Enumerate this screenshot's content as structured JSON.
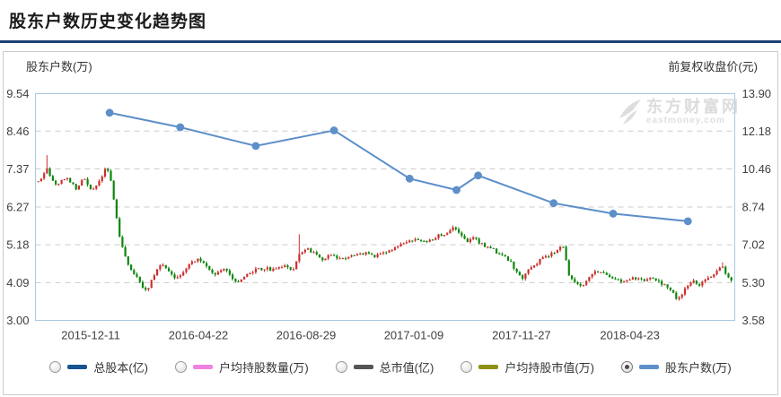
{
  "title": "股东户数历史变化趋势图",
  "colors": {
    "divider": "#1d4077",
    "plot_border": "#a9c9e2",
    "grid": "#cccccc",
    "candle_up": "#cb2f2f",
    "candle_down": "#0e860e",
    "line": "#5d8fc9",
    "tick_text": "#404040"
  },
  "watermark": {
    "brand": "东方财富网",
    "domain": "eastmoney.com"
  },
  "legend": {
    "items": [
      {
        "label": "总股本(亿)",
        "color": "#17548f",
        "selected": false
      },
      {
        "label": "户均持股数量(万)",
        "color": "#ee82e2",
        "selected": false
      },
      {
        "label": "总市值(亿)",
        "color": "#555555",
        "selected": false
      },
      {
        "label": "户均持股市值(万)",
        "color": "#8f8f12",
        "selected": false
      },
      {
        "label": "股东户数(万)",
        "color": "#5d8fc9",
        "selected": true
      }
    ]
  },
  "chart_data": {
    "type": "candlestick+line",
    "title": "股东户数历史变化趋势图",
    "grid": "horizontal-dashed",
    "left_axis": {
      "label": "股东户数(万)",
      "ticks": [
        9.54,
        8.46,
        7.37,
        6.27,
        5.18,
        4.09,
        3.0
      ]
    },
    "right_axis": {
      "label": "前复权收盘价(元)",
      "ticks": [
        13.9,
        12.18,
        10.46,
        8.74,
        7.02,
        5.3,
        3.58
      ]
    },
    "x_axis": {
      "tick_labels": [
        "2015-12-11",
        "2016-04-22",
        "2016-08-29",
        "2017-01-09",
        "2017-11-27",
        "2018-04-23"
      ],
      "tick_positions": [
        0.079,
        0.233,
        0.387,
        0.541,
        0.695,
        0.85
      ]
    },
    "series": [
      {
        "name": "股东户数(万)",
        "type": "line",
        "axis": "left",
        "points": [
          [
            0.106,
            8.99
          ],
          [
            0.207,
            8.57
          ],
          [
            0.315,
            8.03
          ],
          [
            0.427,
            8.48
          ],
          [
            0.535,
            7.09
          ],
          [
            0.602,
            6.76
          ],
          [
            0.633,
            7.18
          ],
          [
            0.741,
            6.38
          ],
          [
            0.826,
            6.08
          ],
          [
            0.933,
            5.86
          ]
        ]
      },
      {
        "name": "前复权收盘价(元)",
        "type": "candlestick",
        "axis": "right",
        "close_anchors": [
          [
            0.004,
            9.9
          ],
          [
            0.01,
            10.2
          ],
          [
            0.017,
            10.5
          ],
          [
            0.023,
            10.0
          ],
          [
            0.03,
            9.7
          ],
          [
            0.04,
            10.1
          ],
          [
            0.05,
            9.9
          ],
          [
            0.058,
            9.6
          ],
          [
            0.065,
            9.9
          ],
          [
            0.072,
            10.0
          ],
          [
            0.078,
            9.5
          ],
          [
            0.085,
            9.7
          ],
          [
            0.092,
            9.9
          ],
          [
            0.1,
            10.5
          ],
          [
            0.104,
            10.3
          ],
          [
            0.108,
            9.9
          ],
          [
            0.113,
            8.8
          ],
          [
            0.119,
            7.6
          ],
          [
            0.126,
            6.6
          ],
          [
            0.133,
            6.1
          ],
          [
            0.142,
            5.6
          ],
          [
            0.149,
            5.4
          ],
          [
            0.155,
            5.0
          ],
          [
            0.16,
            4.85
          ],
          [
            0.168,
            5.6
          ],
          [
            0.178,
            6.15
          ],
          [
            0.19,
            5.8
          ],
          [
            0.201,
            5.5
          ],
          [
            0.213,
            5.85
          ],
          [
            0.226,
            6.3
          ],
          [
            0.235,
            6.4
          ],
          [
            0.247,
            5.9
          ],
          [
            0.258,
            5.7
          ],
          [
            0.271,
            6.0
          ],
          [
            0.281,
            5.5
          ],
          [
            0.291,
            5.35
          ],
          [
            0.304,
            5.7
          ],
          [
            0.317,
            5.9
          ],
          [
            0.329,
            5.95
          ],
          [
            0.342,
            5.85
          ],
          [
            0.355,
            6.1
          ],
          [
            0.368,
            5.9
          ],
          [
            0.376,
            6.5
          ],
          [
            0.386,
            6.85
          ],
          [
            0.399,
            6.6
          ],
          [
            0.412,
            6.35
          ],
          [
            0.424,
            6.6
          ],
          [
            0.437,
            6.3
          ],
          [
            0.453,
            6.55
          ],
          [
            0.468,
            6.65
          ],
          [
            0.483,
            6.5
          ],
          [
            0.499,
            6.7
          ],
          [
            0.514,
            6.9
          ],
          [
            0.529,
            7.1
          ],
          [
            0.545,
            7.25
          ],
          [
            0.56,
            7.1
          ],
          [
            0.573,
            7.4
          ],
          [
            0.586,
            7.5
          ],
          [
            0.599,
            7.85
          ],
          [
            0.606,
            7.6
          ],
          [
            0.617,
            7.2
          ],
          [
            0.627,
            7.35
          ],
          [
            0.64,
            7.0
          ],
          [
            0.65,
            6.9
          ],
          [
            0.663,
            6.6
          ],
          [
            0.676,
            6.35
          ],
          [
            0.686,
            5.9
          ],
          [
            0.696,
            5.5
          ],
          [
            0.706,
            5.9
          ],
          [
            0.717,
            6.2
          ],
          [
            0.728,
            6.5
          ],
          [
            0.738,
            6.6
          ],
          [
            0.749,
            6.9
          ],
          [
            0.754,
            7.0
          ],
          [
            0.76,
            6.2
          ],
          [
            0.763,
            5.6
          ],
          [
            0.771,
            5.3
          ],
          [
            0.781,
            5.15
          ],
          [
            0.794,
            5.7
          ],
          [
            0.806,
            5.85
          ],
          [
            0.817,
            5.6
          ],
          [
            0.829,
            5.4
          ],
          [
            0.842,
            5.3
          ],
          [
            0.855,
            5.5
          ],
          [
            0.868,
            5.4
          ],
          [
            0.881,
            5.5
          ],
          [
            0.894,
            5.3
          ],
          [
            0.906,
            5.0
          ],
          [
            0.919,
            4.5
          ],
          [
            0.929,
            5.0
          ],
          [
            0.94,
            5.4
          ],
          [
            0.95,
            5.2
          ],
          [
            0.96,
            5.5
          ],
          [
            0.971,
            5.7
          ],
          [
            0.981,
            6.15
          ],
          [
            0.988,
            5.7
          ],
          [
            0.995,
            5.4
          ]
        ],
        "high_spikes": [
          [
            0.017,
            11.1
          ],
          [
            0.376,
            7.5
          ],
          [
            0.981,
            6.22
          ]
        ]
      }
    ]
  }
}
